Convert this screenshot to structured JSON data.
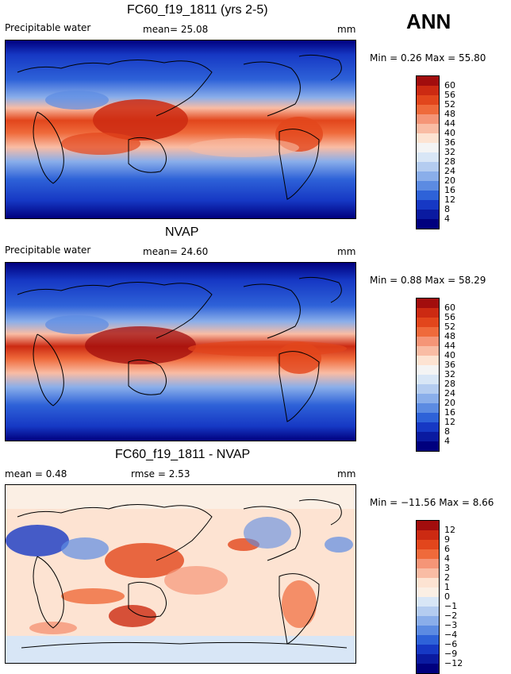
{
  "season_label": "ANN",
  "panels": [
    {
      "title": "FC60_f19_1811 (yrs 2-5)",
      "left_label": "Precipitable water",
      "center_label": "mean=  25.08",
      "units": "mm",
      "stats": "Min =    0.26  Max =   55.80",
      "colorbar": {
        "levels": [
          "60",
          "56",
          "52",
          "48",
          "44",
          "40",
          "36",
          "32",
          "28",
          "24",
          "20",
          "16",
          "12",
          "8",
          "4"
        ],
        "colors": [
          "#a20d0d",
          "#cc2a12",
          "#e2461c",
          "#ef6a3b",
          "#f59577",
          "#f9bca4",
          "#fde3d2",
          "#f4f4f4",
          "#d8e6f6",
          "#b4ccf0",
          "#8aaeea",
          "#5c8be2",
          "#2e62d8",
          "#1638c4",
          "#0a1aa0",
          "#00007e"
        ]
      }
    },
    {
      "title": "NVAP",
      "left_label": "Precipitable water",
      "center_label": "mean=  24.60",
      "units": "mm",
      "stats": "Min =    0.88  Max =   58.29",
      "colorbar": {
        "levels": [
          "60",
          "56",
          "52",
          "48",
          "44",
          "40",
          "36",
          "32",
          "28",
          "24",
          "20",
          "16",
          "12",
          "8",
          "4"
        ],
        "colors": [
          "#a20d0d",
          "#cc2a12",
          "#e2461c",
          "#ef6a3b",
          "#f59577",
          "#f9bca4",
          "#fde3d2",
          "#f4f4f4",
          "#d8e6f6",
          "#b4ccf0",
          "#8aaeea",
          "#5c8be2",
          "#2e62d8",
          "#1638c4",
          "#0a1aa0",
          "#00007e"
        ]
      }
    },
    {
      "title": "FC60_f19_1811 - NVAP",
      "left_label": "mean =    0.48",
      "center_label": "rmse =    2.53",
      "units": "mm",
      "stats": "Min = −11.56  Max =    8.66",
      "colorbar": {
        "levels": [
          "12",
          "9",
          "6",
          "4",
          "3",
          "2",
          "1",
          "0",
          "−1",
          "−2",
          "−3",
          "−4",
          "−6",
          "−9",
          "−12"
        ],
        "colors": [
          "#a20d0d",
          "#cc2a12",
          "#e2461c",
          "#ef6a3b",
          "#f59577",
          "#f9bca4",
          "#fde3d2",
          "#fbefe4",
          "#d8e6f6",
          "#b4ccf0",
          "#8aaeea",
          "#5c8be2",
          "#2e62d8",
          "#1638c4",
          "#0a1aa0",
          "#00007e"
        ]
      }
    }
  ]
}
